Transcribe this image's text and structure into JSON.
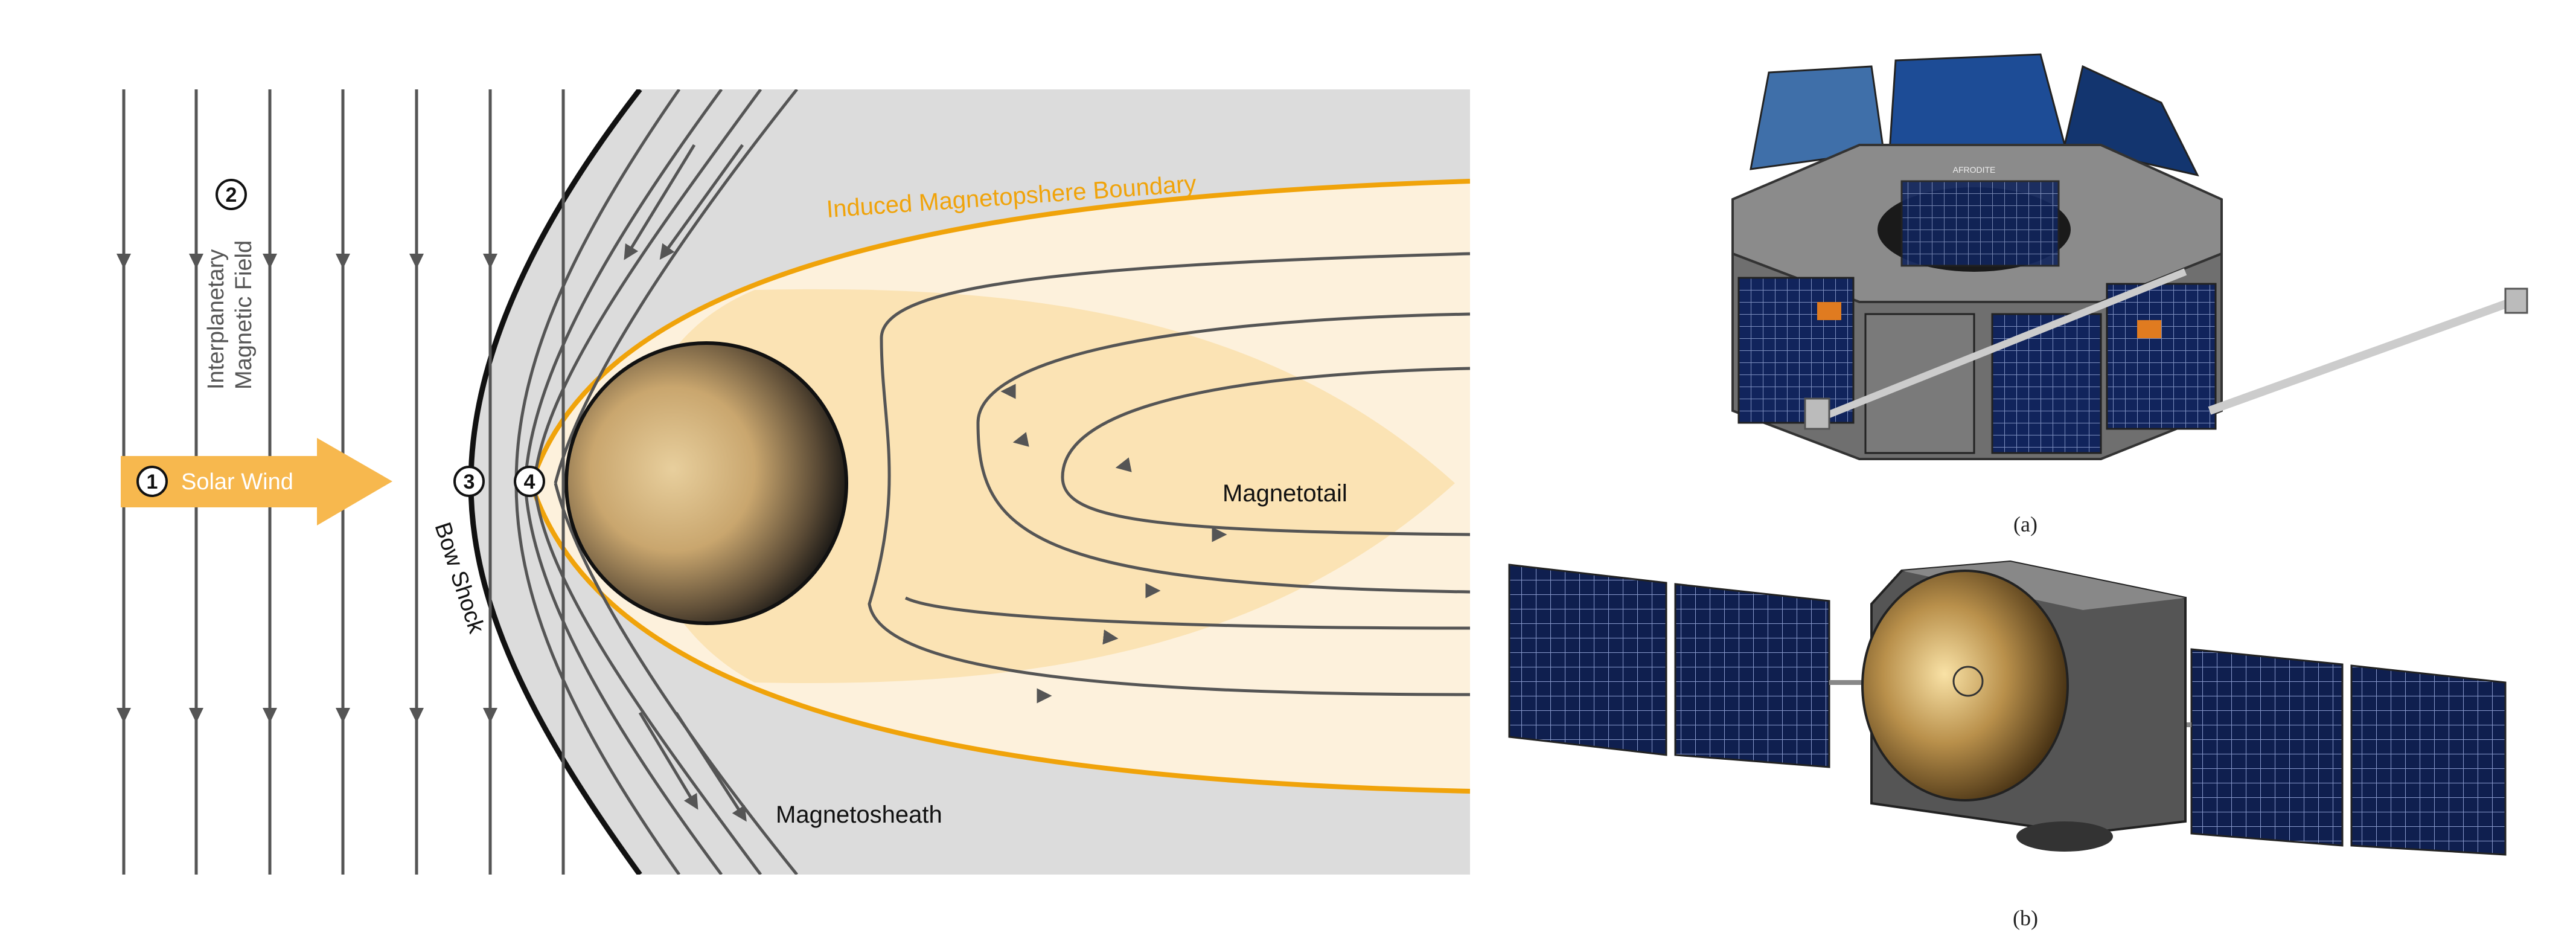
{
  "diagram": {
    "labels": {
      "boundary": "Induced Magnetopshere Boundary",
      "imf_line1": "Interplanetary",
      "imf_line2": "Magnetic Field",
      "solar_wind": "Solar Wind",
      "bow_shock": "Bow Shock",
      "magnetotail": "Magnetotail",
      "magnetosheath": "Magnetosheath"
    },
    "markers": [
      "1",
      "2",
      "3",
      "4"
    ],
    "colors": {
      "sheath_gray": "#dcdcdc",
      "boundary_orange": "#f0a30a",
      "inner_cream": "#fdf1dc",
      "tail_peach": "#fbe3b4",
      "arrow_orange": "#f7b84e",
      "field_line": "#555555"
    }
  },
  "spacecraft": {
    "caption_a": "(a)",
    "caption_b": "(b)",
    "logo_text": "AFRODITE"
  }
}
